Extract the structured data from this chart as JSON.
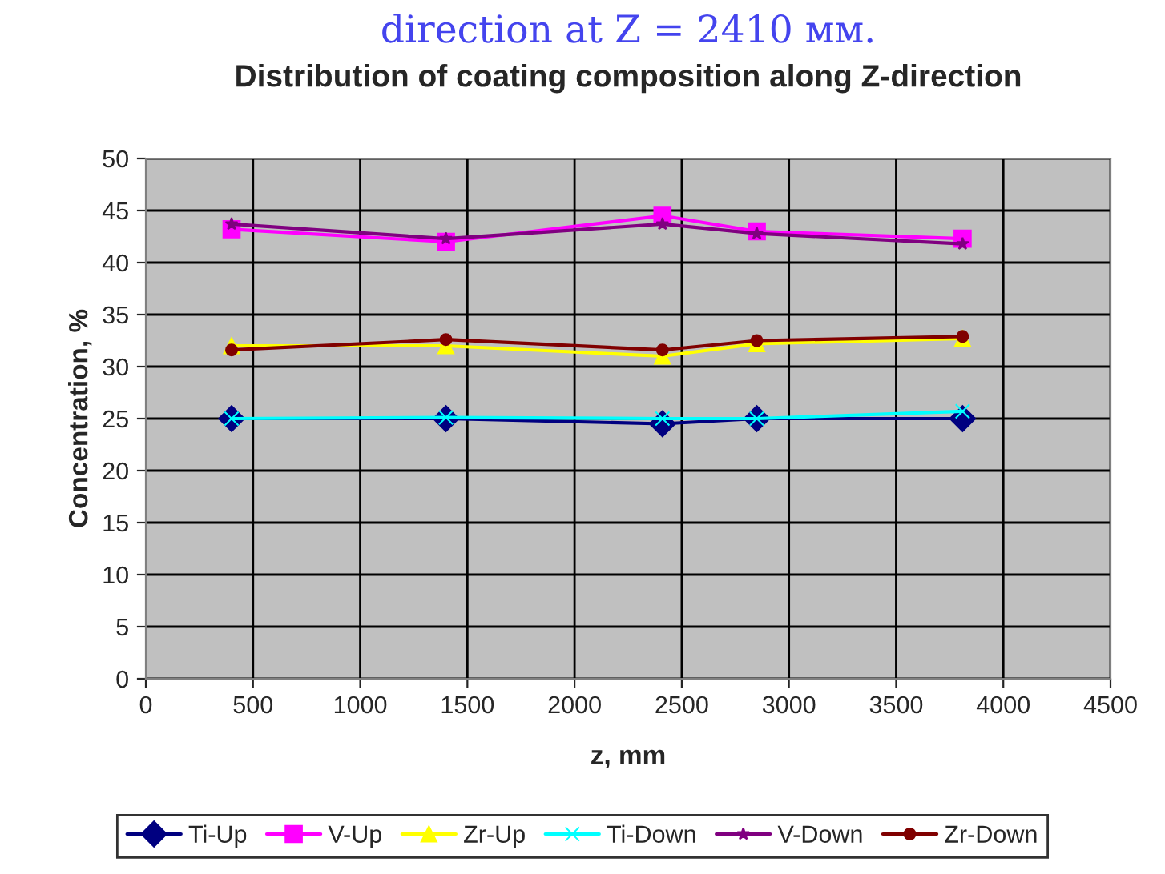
{
  "chart_data": {
    "type": "line",
    "title": "Distribution of coating composition along Z-direction",
    "annotations": [
      "direction at Z = 2410 мм."
    ],
    "xlabel": "z, mm",
    "ylabel": "Concentration, %",
    "x": [
      400,
      1400,
      2410,
      2850,
      3810
    ],
    "series": [
      {
        "name": "Ti-Up",
        "color": "#000080",
        "marker": "diamond",
        "values": [
          25,
          25,
          24.5,
          25,
          25
        ]
      },
      {
        "name": "V-Up",
        "color": "#ff00ff",
        "marker": "square",
        "values": [
          43.2,
          42,
          44.5,
          43,
          42.3
        ]
      },
      {
        "name": "Zr-Up",
        "color": "#ffff00",
        "marker": "triangle",
        "values": [
          32,
          32,
          31,
          32.2,
          32.7
        ]
      },
      {
        "name": "Ti-Down",
        "color": "#00ffff",
        "marker": "cross",
        "values": [
          25,
          25.1,
          25,
          25,
          25.7
        ]
      },
      {
        "name": "V-Down",
        "color": "#800080",
        "marker": "star",
        "values": [
          43.7,
          42.3,
          43.7,
          42.8,
          41.8
        ]
      },
      {
        "name": "Zr-Down",
        "color": "#800000",
        "marker": "circle",
        "values": [
          31.6,
          32.6,
          31.6,
          32.5,
          32.9
        ]
      }
    ],
    "xlim": [
      0,
      4500
    ],
    "xticks": [
      0,
      500,
      1000,
      1500,
      2000,
      2500,
      3000,
      3500,
      4000,
      4500
    ],
    "ylim": [
      0,
      50
    ],
    "yticks": [
      0,
      5,
      10,
      15,
      20,
      25,
      30,
      35,
      40,
      45,
      50
    ],
    "grid": true,
    "legend": "bottom",
    "line_style": "solid"
  }
}
